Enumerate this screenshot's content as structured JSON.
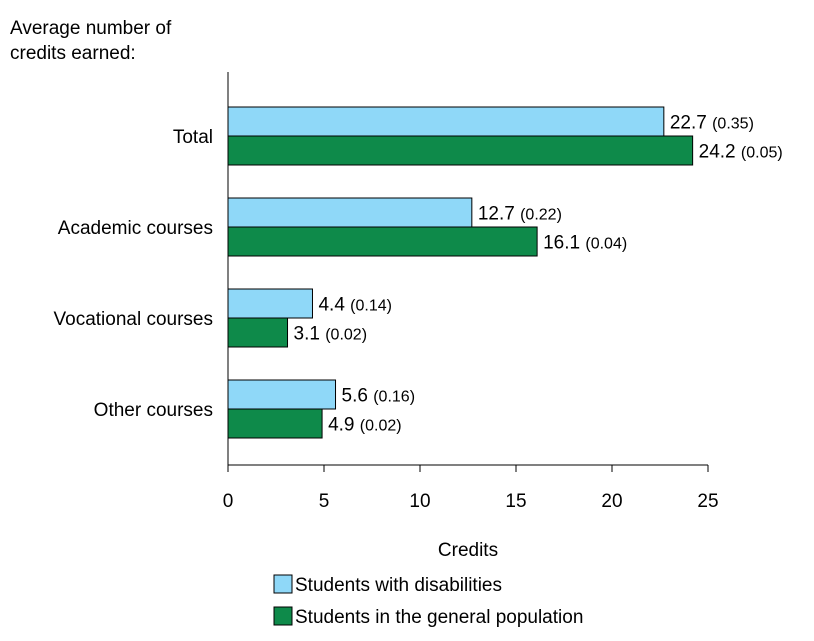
{
  "chart_data": {
    "type": "bar",
    "orientation": "horizontal",
    "ylabel_lines": [
      "Average number of",
      "credits earned:"
    ],
    "xlabel": "Credits",
    "categories": [
      "Total",
      "Academic courses",
      "Vocational courses",
      "Other courses"
    ],
    "series": [
      {
        "name": "Students with disabilities",
        "color": "#8fd8f8",
        "values": [
          22.7,
          12.7,
          4.4,
          5.6
        ],
        "se": [
          "(0.35)",
          "(0.22)",
          "(0.14)",
          "(0.16)"
        ]
      },
      {
        "name": "Students in the general population",
        "color": "#0e8a4a",
        "values": [
          24.2,
          16.1,
          3.1,
          4.9
        ],
        "se": [
          "(0.05)",
          "(0.04)",
          "(0.02)",
          "(0.02)"
        ]
      }
    ],
    "xlim": [
      0,
      25
    ],
    "xticks": [
      0,
      5,
      10,
      15,
      20,
      25
    ],
    "grid": false,
    "legend_position": "bottom"
  }
}
